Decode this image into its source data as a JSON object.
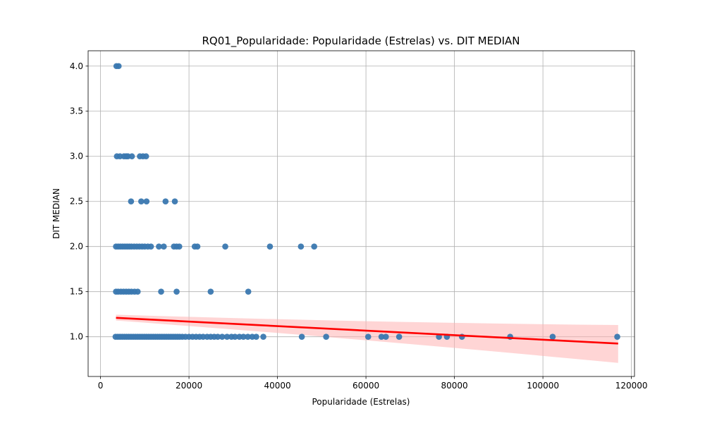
{
  "chart_data": {
    "type": "scatter",
    "title": "RQ01_Popularidade: Popularidade (Estrelas) vs. DIT MEDIAN",
    "xlabel": "Popularidade (Estrelas)",
    "ylabel": "DIT MEDIAN",
    "xlim": [
      -2800,
      120700
    ],
    "ylim": [
      0.56,
      4.17
    ],
    "xticks": [
      0,
      20000,
      40000,
      60000,
      80000,
      100000,
      120000
    ],
    "yticks": [
      1.0,
      1.5,
      2.0,
      2.5,
      3.0,
      3.5,
      4.0
    ],
    "xtick_labels": [
      "0",
      "20000",
      "40000",
      "60000",
      "80000",
      "100000",
      "120000"
    ],
    "ytick_labels": [
      "1.0",
      "1.5",
      "2.0",
      "2.5",
      "3.0",
      "3.5",
      "4.0"
    ],
    "grid": true,
    "colors": {
      "points": "#3a78b0",
      "regression": "#ff0000",
      "ci_band": "#ffb3b3"
    },
    "regression": {
      "x": [
        3500,
        117000
      ],
      "y": [
        1.21,
        0.925
      ],
      "ci_lower": [
        1.18,
        0.71
      ],
      "ci_upper": [
        1.245,
        1.13
      ]
    },
    "points": [
      {
        "x": 3600,
        "y": 4.0
      },
      {
        "x": 4100,
        "y": 4.0
      },
      {
        "x": 3700,
        "y": 3.0
      },
      {
        "x": 4400,
        "y": 3.0
      },
      {
        "x": 5300,
        "y": 3.0
      },
      {
        "x": 5800,
        "y": 3.0
      },
      {
        "x": 6200,
        "y": 3.0
      },
      {
        "x": 7100,
        "y": 3.0
      },
      {
        "x": 8900,
        "y": 3.0
      },
      {
        "x": 9600,
        "y": 3.0
      },
      {
        "x": 10300,
        "y": 3.0
      },
      {
        "x": 6900,
        "y": 2.5
      },
      {
        "x": 9200,
        "y": 2.5
      },
      {
        "x": 10400,
        "y": 2.5
      },
      {
        "x": 14700,
        "y": 2.5
      },
      {
        "x": 16800,
        "y": 2.5
      },
      {
        "x": 3500,
        "y": 2.0
      },
      {
        "x": 4000,
        "y": 2.0
      },
      {
        "x": 4500,
        "y": 2.0
      },
      {
        "x": 5000,
        "y": 2.0
      },
      {
        "x": 5500,
        "y": 2.0
      },
      {
        "x": 6000,
        "y": 2.0
      },
      {
        "x": 6500,
        "y": 2.0
      },
      {
        "x": 7000,
        "y": 2.0
      },
      {
        "x": 7600,
        "y": 2.0
      },
      {
        "x": 8200,
        "y": 2.0
      },
      {
        "x": 8800,
        "y": 2.0
      },
      {
        "x": 9400,
        "y": 2.0
      },
      {
        "x": 10000,
        "y": 2.0
      },
      {
        "x": 10700,
        "y": 2.0
      },
      {
        "x": 11400,
        "y": 2.0
      },
      {
        "x": 13200,
        "y": 2.0
      },
      {
        "x": 14300,
        "y": 2.0
      },
      {
        "x": 16600,
        "y": 2.0
      },
      {
        "x": 17200,
        "y": 2.0
      },
      {
        "x": 17800,
        "y": 2.0
      },
      {
        "x": 21300,
        "y": 2.0
      },
      {
        "x": 21900,
        "y": 2.0
      },
      {
        "x": 28200,
        "y": 2.0
      },
      {
        "x": 38300,
        "y": 2.0
      },
      {
        "x": 45300,
        "y": 2.0
      },
      {
        "x": 48300,
        "y": 2.0
      },
      {
        "x": 3500,
        "y": 1.5
      },
      {
        "x": 4000,
        "y": 1.5
      },
      {
        "x": 4600,
        "y": 1.5
      },
      {
        "x": 5200,
        "y": 1.5
      },
      {
        "x": 5800,
        "y": 1.5
      },
      {
        "x": 6400,
        "y": 1.5
      },
      {
        "x": 7000,
        "y": 1.5
      },
      {
        "x": 7700,
        "y": 1.5
      },
      {
        "x": 8400,
        "y": 1.5
      },
      {
        "x": 13700,
        "y": 1.5
      },
      {
        "x": 17200,
        "y": 1.5
      },
      {
        "x": 24900,
        "y": 1.5
      },
      {
        "x": 33400,
        "y": 1.5
      },
      {
        "x": 3400,
        "y": 1.0
      },
      {
        "x": 3900,
        "y": 1.0
      },
      {
        "x": 4400,
        "y": 1.0
      },
      {
        "x": 4900,
        "y": 1.0
      },
      {
        "x": 5400,
        "y": 1.0
      },
      {
        "x": 5900,
        "y": 1.0
      },
      {
        "x": 6400,
        "y": 1.0
      },
      {
        "x": 6900,
        "y": 1.0
      },
      {
        "x": 7400,
        "y": 1.0
      },
      {
        "x": 7900,
        "y": 1.0
      },
      {
        "x": 8400,
        "y": 1.0
      },
      {
        "x": 8900,
        "y": 1.0
      },
      {
        "x": 9400,
        "y": 1.0
      },
      {
        "x": 9900,
        "y": 1.0
      },
      {
        "x": 10400,
        "y": 1.0
      },
      {
        "x": 10900,
        "y": 1.0
      },
      {
        "x": 11400,
        "y": 1.0
      },
      {
        "x": 11900,
        "y": 1.0
      },
      {
        "x": 12400,
        "y": 1.0
      },
      {
        "x": 12900,
        "y": 1.0
      },
      {
        "x": 13400,
        "y": 1.0
      },
      {
        "x": 13900,
        "y": 1.0
      },
      {
        "x": 14400,
        "y": 1.0
      },
      {
        "x": 14900,
        "y": 1.0
      },
      {
        "x": 15400,
        "y": 1.0
      },
      {
        "x": 15900,
        "y": 1.0
      },
      {
        "x": 16400,
        "y": 1.0
      },
      {
        "x": 16900,
        "y": 1.0
      },
      {
        "x": 17400,
        "y": 1.0
      },
      {
        "x": 17900,
        "y": 1.0
      },
      {
        "x": 18500,
        "y": 1.0
      },
      {
        "x": 19200,
        "y": 1.0
      },
      {
        "x": 20000,
        "y": 1.0
      },
      {
        "x": 20800,
        "y": 1.0
      },
      {
        "x": 21600,
        "y": 1.0
      },
      {
        "x": 22400,
        "y": 1.0
      },
      {
        "x": 23200,
        "y": 1.0
      },
      {
        "x": 24100,
        "y": 1.0
      },
      {
        "x": 24900,
        "y": 1.0
      },
      {
        "x": 25700,
        "y": 1.0
      },
      {
        "x": 26500,
        "y": 1.0
      },
      {
        "x": 27500,
        "y": 1.0
      },
      {
        "x": 28600,
        "y": 1.0
      },
      {
        "x": 29600,
        "y": 1.0
      },
      {
        "x": 30400,
        "y": 1.0
      },
      {
        "x": 31400,
        "y": 1.0
      },
      {
        "x": 32300,
        "y": 1.0
      },
      {
        "x": 33300,
        "y": 1.0
      },
      {
        "x": 34300,
        "y": 1.0
      },
      {
        "x": 35200,
        "y": 1.0
      },
      {
        "x": 36800,
        "y": 1.0
      },
      {
        "x": 45500,
        "y": 1.0
      },
      {
        "x": 51000,
        "y": 1.0
      },
      {
        "x": 60500,
        "y": 1.0
      },
      {
        "x": 63500,
        "y": 1.0
      },
      {
        "x": 64500,
        "y": 1.0
      },
      {
        "x": 67500,
        "y": 1.0
      },
      {
        "x": 76500,
        "y": 1.0
      },
      {
        "x": 78300,
        "y": 1.0
      },
      {
        "x": 81700,
        "y": 1.0
      },
      {
        "x": 92600,
        "y": 1.0
      },
      {
        "x": 102200,
        "y": 1.0
      },
      {
        "x": 116800,
        "y": 1.0
      }
    ]
  }
}
